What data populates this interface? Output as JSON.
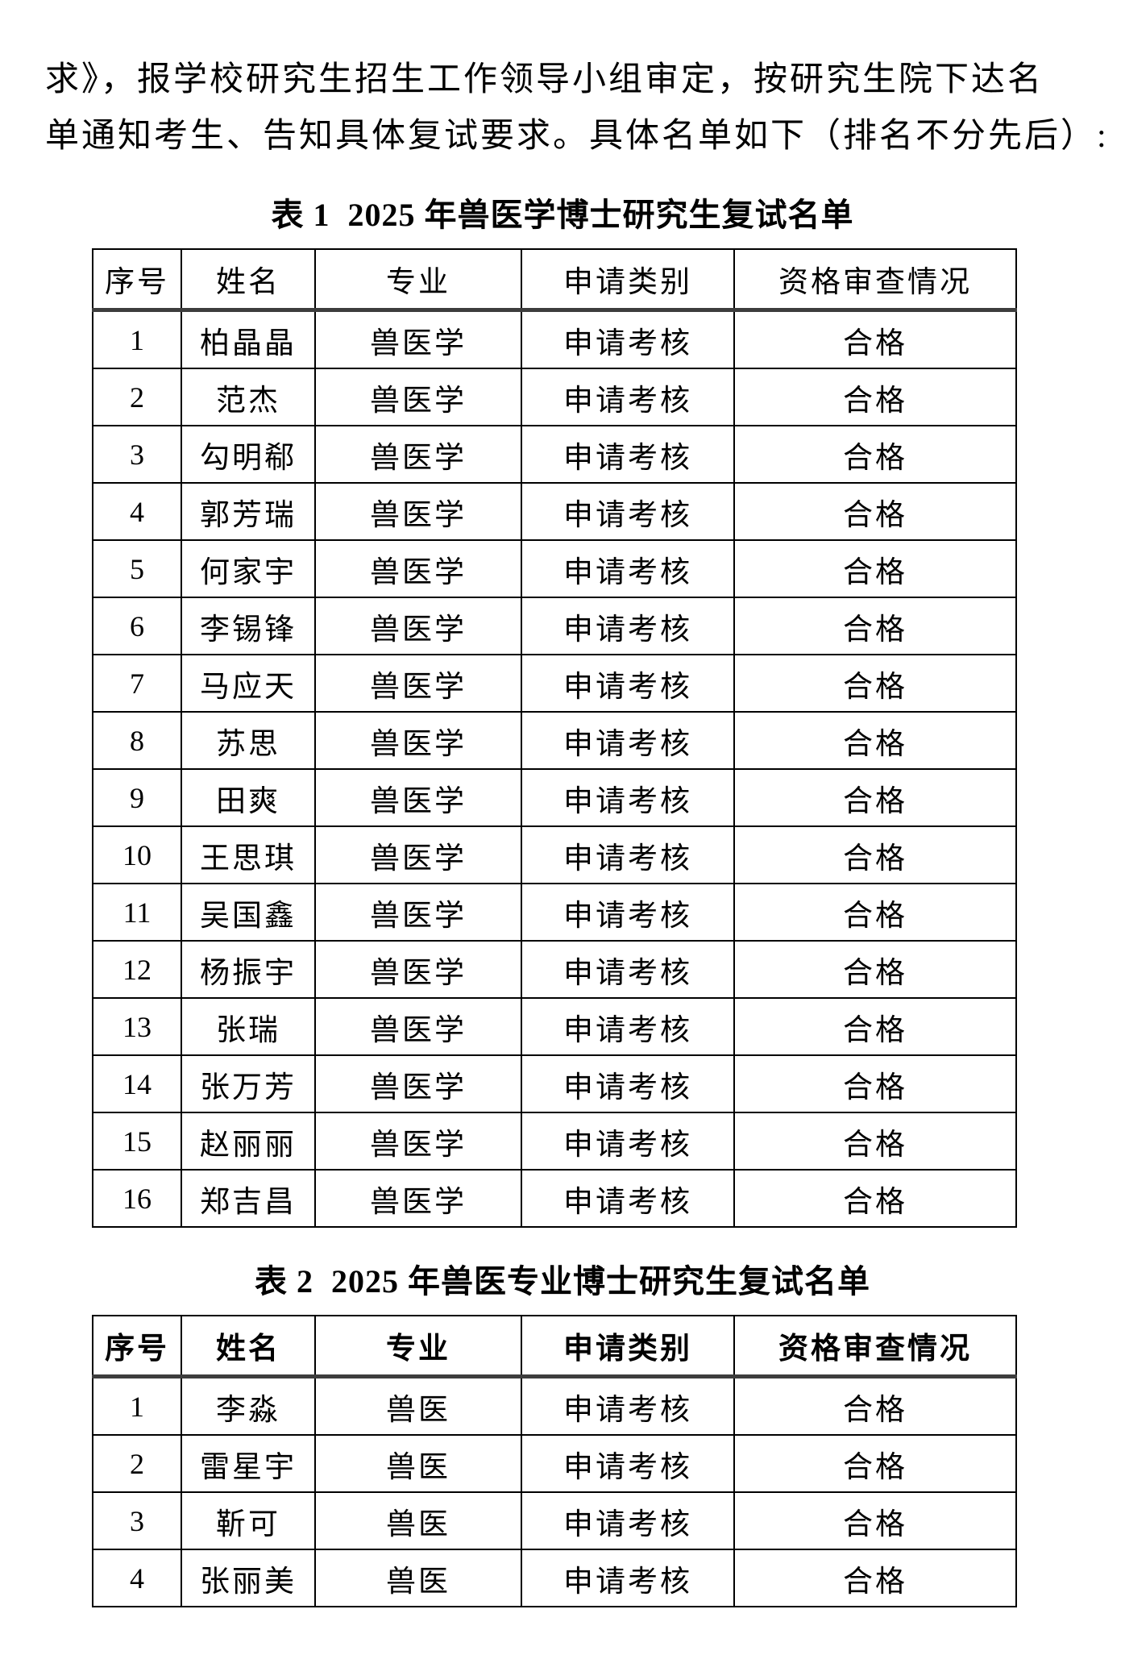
{
  "paragraph": {
    "line1": "求》，报学校研究生招生工作领导小组审定，按研究生院下达名",
    "line2": "单通知考生、告知具体复试要求。具体名单如下（排名不分先后）:"
  },
  "table1": {
    "title": "表 1  2025 年兽医学博士研究生复试名单",
    "headers": [
      "序号",
      "姓名",
      "专业",
      "申请类别",
      "资格审查情况"
    ],
    "rows": [
      {
        "no": "1",
        "name": "柏晶晶",
        "major": "兽医学",
        "category": "申请考核",
        "status": "合格"
      },
      {
        "no": "2",
        "name": "范杰",
        "major": "兽医学",
        "category": "申请考核",
        "status": "合格"
      },
      {
        "no": "3",
        "name": "勾明郗",
        "major": "兽医学",
        "category": "申请考核",
        "status": "合格"
      },
      {
        "no": "4",
        "name": "郭芳瑞",
        "major": "兽医学",
        "category": "申请考核",
        "status": "合格"
      },
      {
        "no": "5",
        "name": "何家宇",
        "major": "兽医学",
        "category": "申请考核",
        "status": "合格"
      },
      {
        "no": "6",
        "name": "李锡锋",
        "major": "兽医学",
        "category": "申请考核",
        "status": "合格"
      },
      {
        "no": "7",
        "name": "马应天",
        "major": "兽医学",
        "category": "申请考核",
        "status": "合格"
      },
      {
        "no": "8",
        "name": "苏思",
        "major": "兽医学",
        "category": "申请考核",
        "status": "合格"
      },
      {
        "no": "9",
        "name": "田爽",
        "major": "兽医学",
        "category": "申请考核",
        "status": "合格"
      },
      {
        "no": "10",
        "name": "王思琪",
        "major": "兽医学",
        "category": "申请考核",
        "status": "合格"
      },
      {
        "no": "11",
        "name": "吴国鑫",
        "major": "兽医学",
        "category": "申请考核",
        "status": "合格"
      },
      {
        "no": "12",
        "name": "杨振宇",
        "major": "兽医学",
        "category": "申请考核",
        "status": "合格"
      },
      {
        "no": "13",
        "name": "张瑞",
        "major": "兽医学",
        "category": "申请考核",
        "status": "合格"
      },
      {
        "no": "14",
        "name": "张万芳",
        "major": "兽医学",
        "category": "申请考核",
        "status": "合格"
      },
      {
        "no": "15",
        "name": "赵丽丽",
        "major": "兽医学",
        "category": "申请考核",
        "status": "合格"
      },
      {
        "no": "16",
        "name": "郑吉昌",
        "major": "兽医学",
        "category": "申请考核",
        "status": "合格"
      }
    ]
  },
  "table2": {
    "title": "表 2  2025 年兽医专业博士研究生复试名单",
    "headers": [
      "序号",
      "姓名",
      "专业",
      "申请类别",
      "资格审查情况"
    ],
    "rows": [
      {
        "no": "1",
        "name": "李淼",
        "major": "兽医",
        "category": "申请考核",
        "status": "合格"
      },
      {
        "no": "2",
        "name": "雷星宇",
        "major": "兽医",
        "category": "申请考核",
        "status": "合格"
      },
      {
        "no": "3",
        "name": "靳可",
        "major": "兽医",
        "category": "申请考核",
        "status": "合格"
      },
      {
        "no": "4",
        "name": "张丽美",
        "major": "兽医",
        "category": "申请考核",
        "status": "合格"
      }
    ]
  }
}
